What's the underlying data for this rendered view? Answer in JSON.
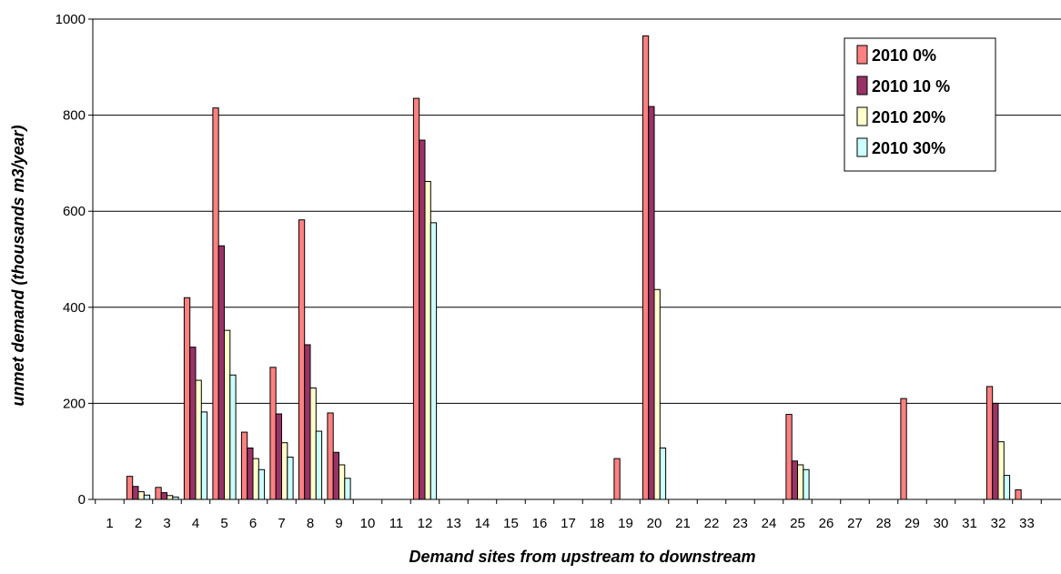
{
  "chart_data": {
    "type": "bar",
    "xlabel": "Demand sites  from upstream to downstream",
    "ylabel": "unmet demand (thousands m3/year)",
    "ylim": [
      0,
      1000
    ],
    "yticks": [
      0,
      200,
      400,
      600,
      800,
      1000
    ],
    "grid": true,
    "legend_position": "top-right",
    "categories": [
      "1",
      "2",
      "3",
      "4",
      "5",
      "6",
      "7",
      "8",
      "9",
      "10",
      "11",
      "12",
      "13",
      "14",
      "15",
      "16",
      "17",
      "18",
      "19",
      "20",
      "21",
      "22",
      "23",
      "24",
      "25",
      "26",
      "27",
      "28",
      "29",
      "30",
      "31",
      "32",
      "33"
    ],
    "series": [
      {
        "name": "2010 0%",
        "color": "#ff8080",
        "values": [
          0,
          48,
          25,
          420,
          815,
          140,
          275,
          582,
          180,
          0,
          0,
          835,
          0,
          0,
          0,
          0,
          0,
          0,
          85,
          965,
          0,
          0,
          0,
          0,
          177,
          0,
          0,
          0,
          210,
          0,
          0,
          235,
          20
        ]
      },
      {
        "name": "2010 10 %",
        "color": "#993366",
        "values": [
          0,
          27,
          14,
          317,
          528,
          107,
          178,
          322,
          98,
          0,
          0,
          748,
          0,
          0,
          0,
          0,
          0,
          0,
          0,
          818,
          0,
          0,
          0,
          0,
          80,
          0,
          0,
          0,
          0,
          0,
          0,
          200,
          0
        ]
      },
      {
        "name": "2010 20%",
        "color": "#ffffcc",
        "values": [
          0,
          16,
          8,
          248,
          352,
          85,
          118,
          232,
          72,
          0,
          0,
          662,
          0,
          0,
          0,
          0,
          0,
          0,
          0,
          437,
          0,
          0,
          0,
          0,
          72,
          0,
          0,
          0,
          0,
          0,
          0,
          120,
          0
        ]
      },
      {
        "name": "2010 30%",
        "color": "#ccffff",
        "values": [
          0,
          9,
          5,
          182,
          259,
          62,
          88,
          142,
          44,
          0,
          0,
          576,
          0,
          0,
          0,
          0,
          0,
          0,
          0,
          107,
          0,
          0,
          0,
          0,
          62,
          0,
          0,
          0,
          0,
          0,
          0,
          50,
          0
        ]
      }
    ]
  }
}
